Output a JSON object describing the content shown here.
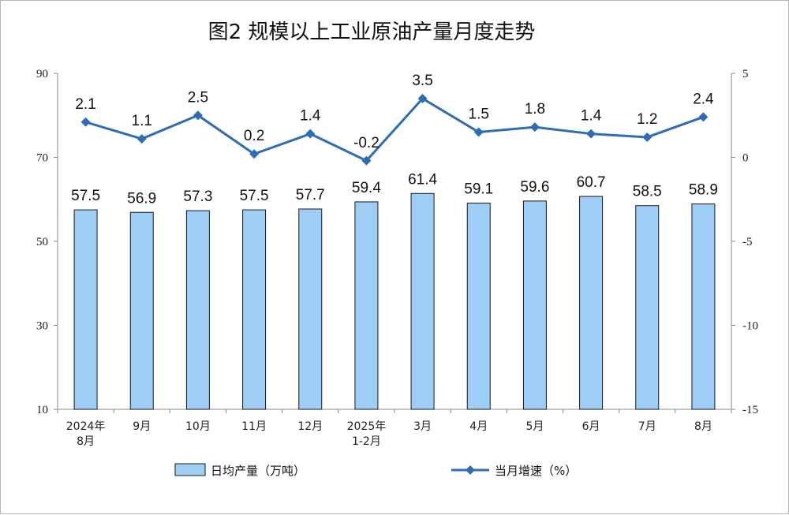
{
  "chart_data": {
    "type": "bar+line",
    "title": "图2  规模以上工业原油产量月度走势",
    "categories": [
      [
        "2024年",
        "8月"
      ],
      [
        "9月"
      ],
      [
        "10月"
      ],
      [
        "11月"
      ],
      [
        "12月"
      ],
      [
        "2025年",
        "1-2月"
      ],
      [
        "3月"
      ],
      [
        "4月"
      ],
      [
        "5月"
      ],
      [
        "6月"
      ],
      [
        "7月"
      ],
      [
        "8月"
      ]
    ],
    "series": [
      {
        "name": "日均产量（万吨）",
        "type": "bar",
        "axis": "left",
        "color": "#9ecdf6",
        "values": [
          57.5,
          56.9,
          57.3,
          57.5,
          57.7,
          59.4,
          61.4,
          59.1,
          59.6,
          60.7,
          58.5,
          58.9
        ],
        "labels": [
          "57.5",
          "56.9",
          "57.3",
          "57.5",
          "57.7",
          "59.4",
          "61.4",
          "59.1",
          "59.6",
          "60.7",
          "58.5",
          "58.9"
        ]
      },
      {
        "name": "当月增速（%）",
        "type": "line",
        "axis": "right",
        "color": "#2e6db5",
        "values": [
          2.1,
          1.1,
          2.5,
          0.2,
          1.4,
          -0.2,
          3.5,
          1.5,
          1.8,
          1.4,
          1.2,
          2.4
        ],
        "labels": [
          "2.1",
          "1.1",
          "2.5",
          "0.2",
          "1.4",
          "-0.2",
          "3.5",
          "1.5",
          "1.8",
          "1.4",
          "1.2",
          "2.4"
        ]
      }
    ],
    "y_left": {
      "min": 10,
      "max": 90,
      "ticks": [
        "10",
        "30",
        "50",
        "70",
        "90"
      ]
    },
    "y_right": {
      "min": -15,
      "max": 5,
      "ticks": [
        "-15",
        "-10",
        "-5",
        "0",
        "5"
      ]
    },
    "grid": false,
    "legend_position": "bottom"
  }
}
